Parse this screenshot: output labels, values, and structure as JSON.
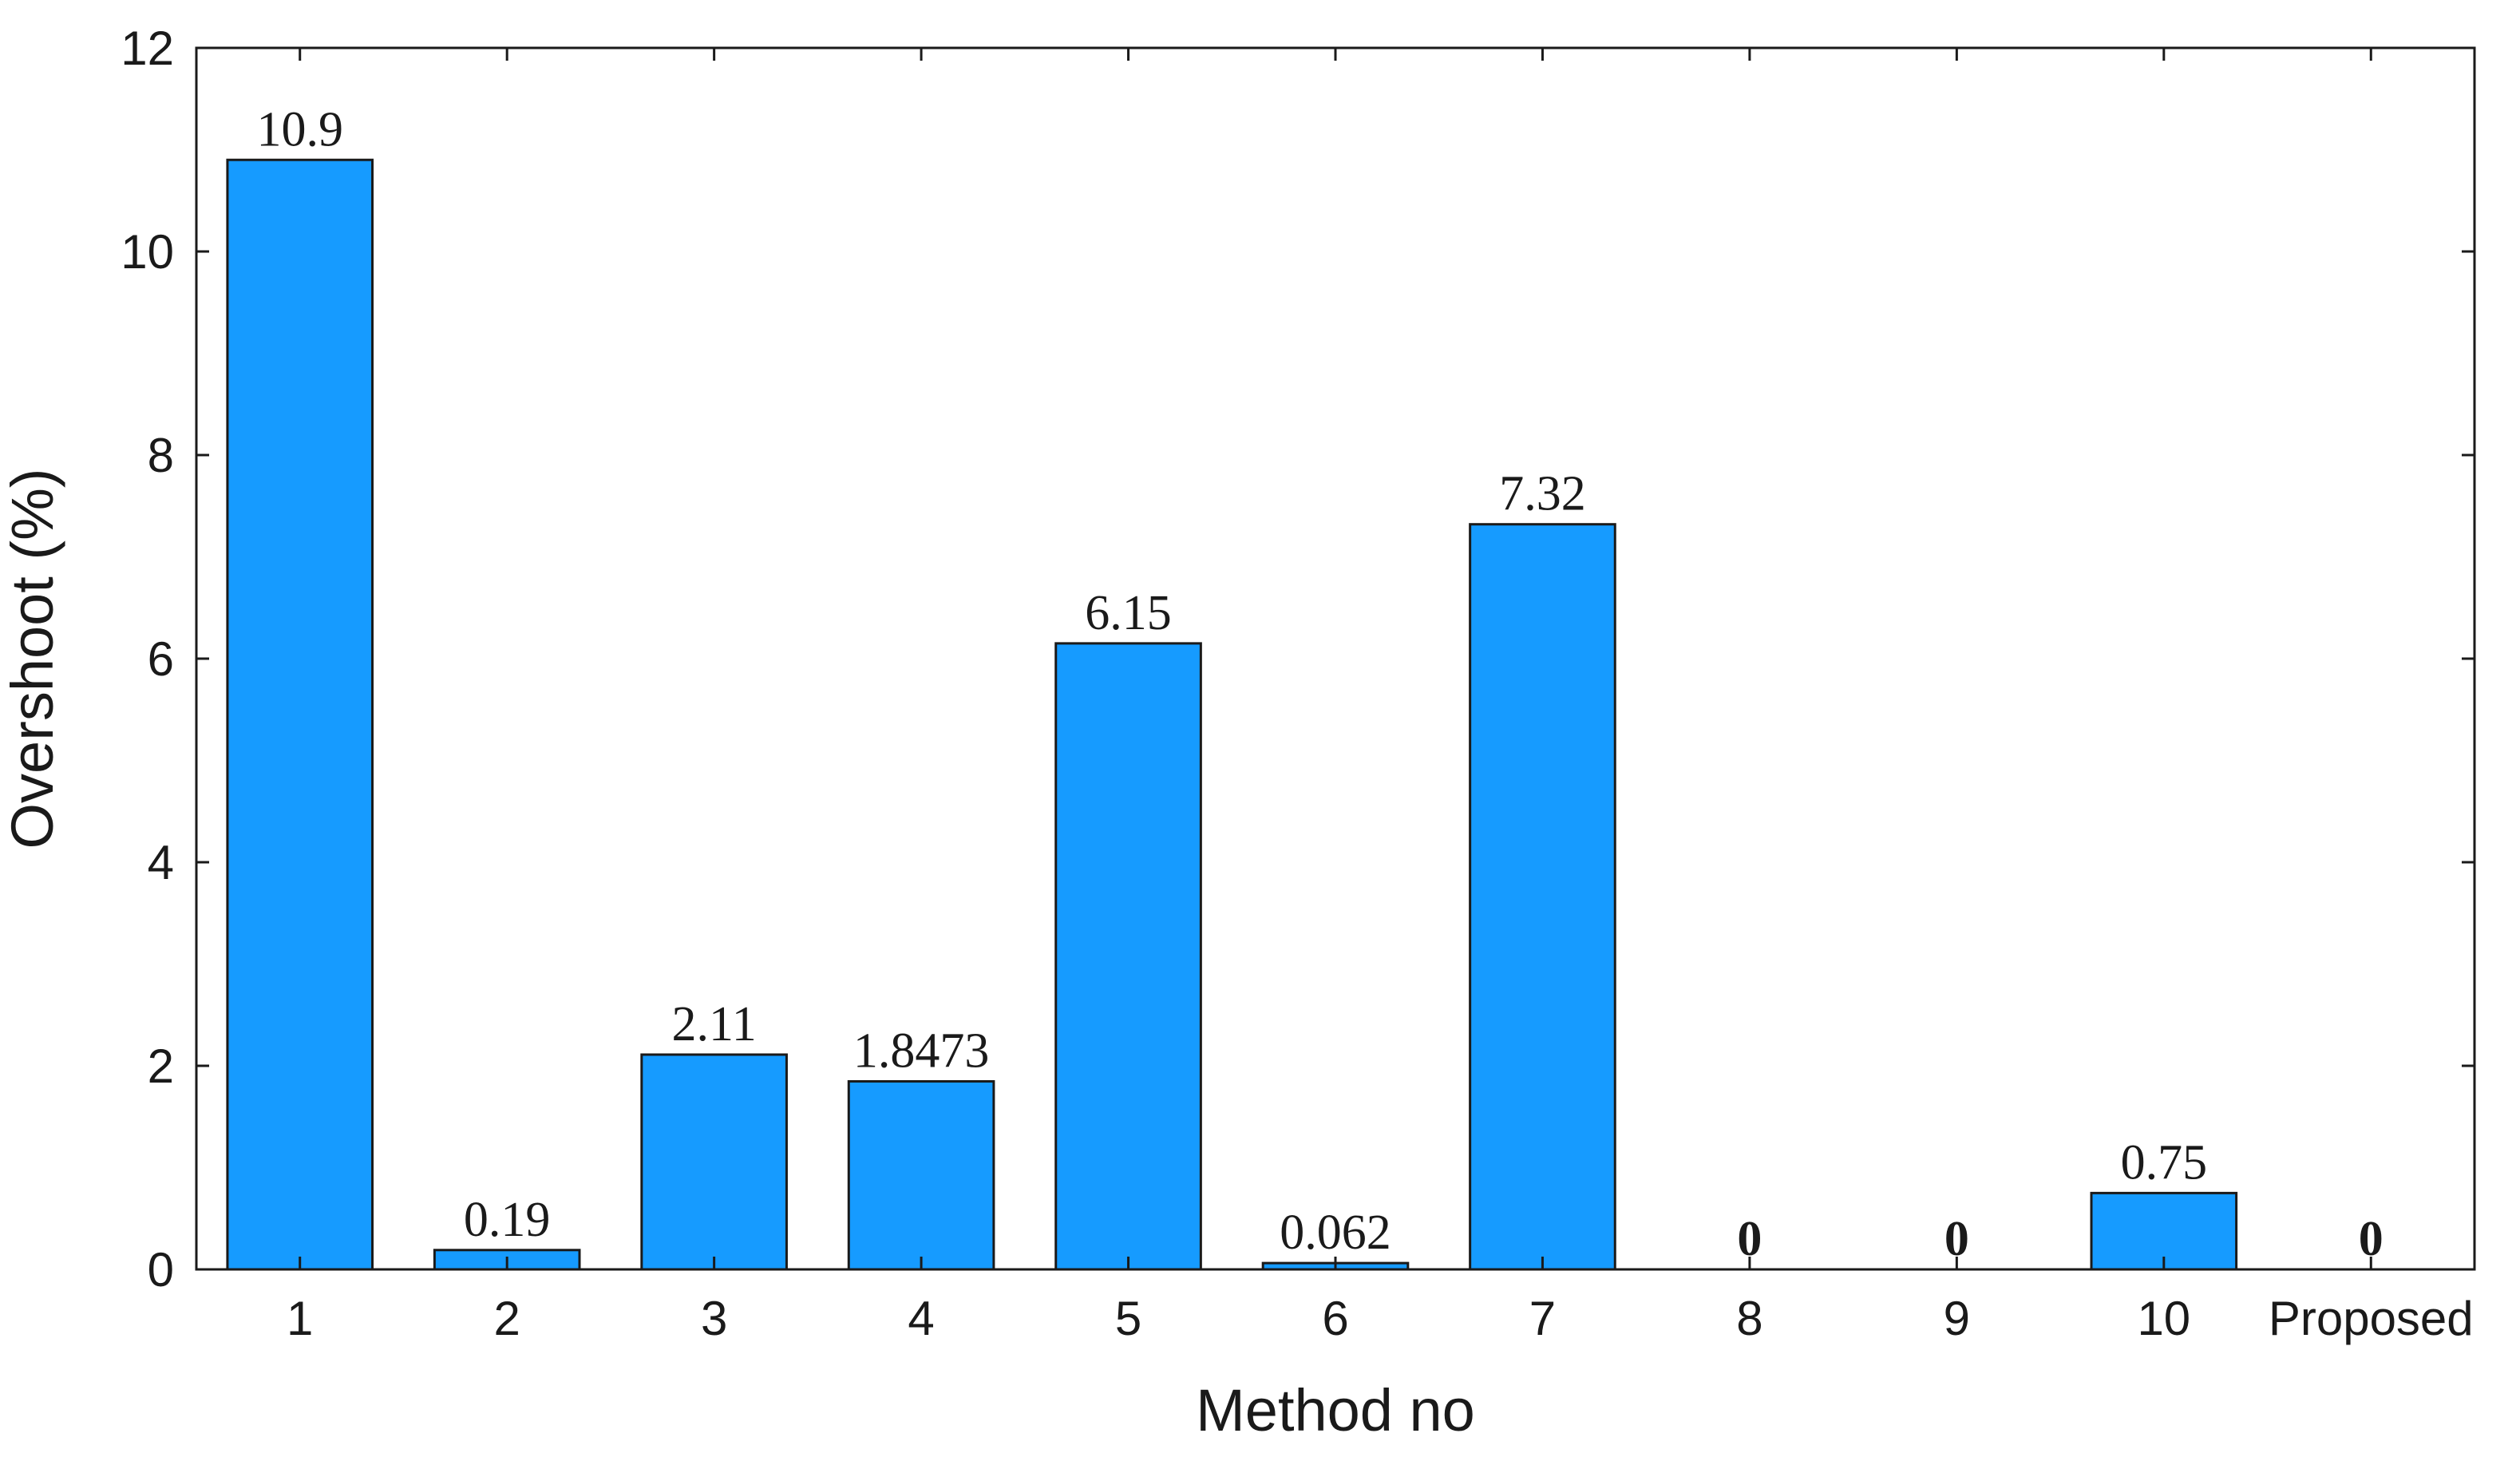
{
  "chart_data": {
    "type": "bar",
    "title": "",
    "xlabel": "Method no",
    "ylabel": "Overshoot (%)",
    "categories": [
      "1",
      "2",
      "3",
      "4",
      "5",
      "6",
      "7",
      "8",
      "9",
      "10",
      "Proposed"
    ],
    "values": [
      10.9,
      0.19,
      2.11,
      1.8473,
      6.15,
      0.062,
      7.32,
      0,
      0,
      0.75,
      0
    ],
    "data_labels": [
      "10.9",
      "0.19",
      "2.11",
      "1.8473",
      "6.15",
      "0.062",
      "7.32",
      "0",
      "0",
      "0.75",
      "0"
    ],
    "ylim": [
      0,
      12
    ],
    "yticks": [
      0,
      2,
      4,
      6,
      8,
      10,
      12
    ],
    "bar_color": "#169BFF",
    "grid": false,
    "legend": "none"
  }
}
